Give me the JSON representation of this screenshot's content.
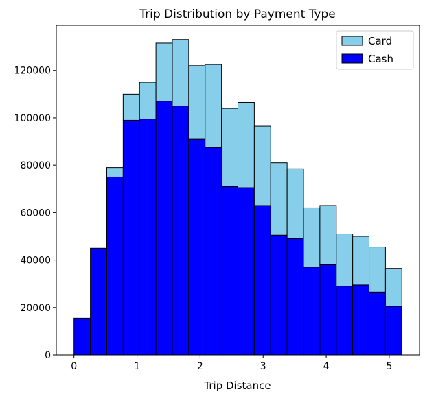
{
  "chart_data": {
    "type": "bar",
    "stacked": true,
    "title": "Trip Distribution by Payment Type",
    "xlabel": "Trip Distance",
    "ylabel": "",
    "xlim": [
      -0.28,
      5.48
    ],
    "ylim": [
      0,
      139000
    ],
    "grid": false,
    "legend_position": "top-right",
    "bin_width": 0.26,
    "bin_starts": [
      0.0,
      0.26,
      0.52,
      0.78,
      1.04,
      1.3,
      1.56,
      1.82,
      2.08,
      2.34,
      2.6,
      2.86,
      3.12,
      3.38,
      3.64,
      3.9,
      4.16,
      4.42,
      4.68,
      4.94
    ],
    "x_ticks": [
      0,
      1,
      2,
      3,
      4,
      5
    ],
    "x_tick_labels": [
      "0",
      "1",
      "2",
      "3",
      "4",
      "5"
    ],
    "y_ticks": [
      0,
      20000,
      40000,
      60000,
      80000,
      100000,
      120000
    ],
    "y_tick_labels": [
      "0",
      "20000",
      "40000",
      "60000",
      "80000",
      "100000",
      "120000"
    ],
    "series": [
      {
        "name": "Cash",
        "color": "#0000ff",
        "values": [
          15500,
          45000,
          75000,
          99000,
          99500,
          107000,
          105000,
          91000,
          87500,
          71000,
          70500,
          63000,
          50500,
          49000,
          37000,
          38000,
          29000,
          29500,
          26500,
          20500
        ]
      },
      {
        "name": "Card",
        "color": "#87ceeb",
        "values": [
          0,
          0,
          4000,
          11000,
          15500,
          24500,
          28000,
          31000,
          35000,
          33000,
          36000,
          33500,
          30500,
          29500,
          25000,
          25000,
          22000,
          20500,
          19000,
          16000
        ]
      }
    ]
  }
}
